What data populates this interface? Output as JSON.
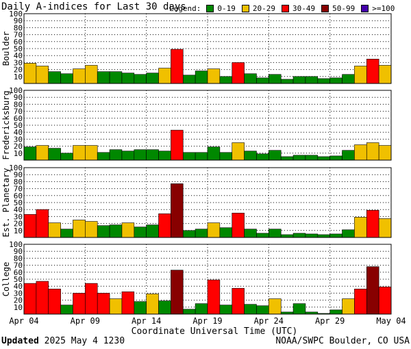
{
  "header": {
    "title": "Daily A-indices for Last 30 days",
    "legend_label": "Legend:"
  },
  "legend": [
    {
      "label": "0-19",
      "color": "#008800"
    },
    {
      "label": "20-29",
      "color": "#f0c000"
    },
    {
      "label": "30-49",
      "color": "#ff0000"
    },
    {
      "label": "50-99",
      "color": "#880000"
    },
    {
      "label": ">=100",
      "color": "#4400aa"
    }
  ],
  "chart_data": {
    "type": "bar",
    "xlabel": "Coordinate Universal Time (UTC)",
    "x_tick_labels": [
      "Apr 04",
      "Apr 09",
      "Apr 14",
      "Apr 19",
      "Apr 24",
      "Apr 29",
      "May 04"
    ],
    "ylim": [
      0,
      100
    ],
    "y_ticks": [
      10,
      20,
      30,
      40,
      50,
      60,
      70,
      80,
      90,
      100
    ],
    "grid": true,
    "legend_position": "top",
    "series": [
      {
        "name": "Boulder",
        "values": [
          29,
          25,
          17,
          14,
          21,
          26,
          17,
          17,
          15,
          13,
          15,
          22,
          49,
          12,
          18,
          21,
          10,
          30,
          14,
          8,
          13,
          6,
          10,
          10,
          7,
          8,
          13,
          25,
          35,
          26
        ]
      },
      {
        "name": "Fredericksburg",
        "values": [
          19,
          21,
          17,
          10,
          21,
          21,
          11,
          15,
          13,
          15,
          15,
          13,
          43,
          11,
          11,
          19,
          11,
          25,
          13,
          9,
          14,
          5,
          7,
          7,
          5,
          6,
          14,
          22,
          25,
          21
        ]
      },
      {
        "name": "Est. Planetary",
        "values": [
          33,
          40,
          21,
          12,
          25,
          23,
          17,
          18,
          21,
          15,
          18,
          34,
          77,
          10,
          12,
          21,
          14,
          35,
          12,
          6,
          12,
          4,
          6,
          5,
          4,
          5,
          11,
          29,
          39,
          27
        ]
      },
      {
        "name": "College",
        "values": [
          44,
          47,
          36,
          13,
          30,
          44,
          30,
          22,
          32,
          18,
          29,
          19,
          63,
          7,
          15,
          49,
          13,
          37,
          14,
          12,
          22,
          3,
          15,
          3,
          1,
          6,
          22,
          36,
          68,
          39
        ]
      }
    ]
  },
  "footer": {
    "updated_label": "Updated",
    "updated_value": "2025 May  4 1230",
    "source": "NOAA/SWPC Boulder, CO USA"
  }
}
